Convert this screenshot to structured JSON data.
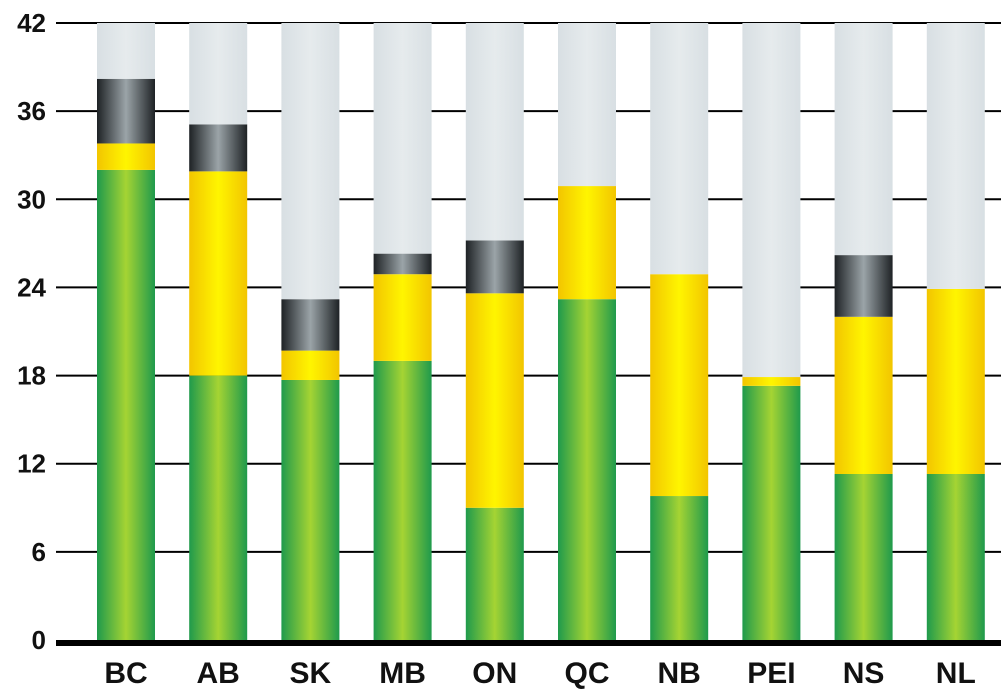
{
  "chart_data": {
    "type": "bar",
    "stacked": true,
    "categories": [
      "BC",
      "AB",
      "SK",
      "MB",
      "ON",
      "QC",
      "NB",
      "PEI",
      "NS",
      "NL"
    ],
    "series": [
      {
        "color": "#2ea84a",
        "values": [
          32,
          18,
          17.7,
          19,
          9,
          23.2,
          9.8,
          17.3,
          11.3,
          11.3
        ]
      },
      {
        "color": "#f7e600",
        "values": [
          1.8,
          13.9,
          2,
          5.9,
          14.6,
          7.7,
          15.1,
          0.6,
          10.7,
          12.6
        ]
      },
      {
        "color": "#555c60",
        "values": [
          4.4,
          3.2,
          3.5,
          1.4,
          3.6,
          0,
          0,
          0,
          4.2,
          0
        ]
      },
      {
        "color": "#dde3e6",
        "values": [
          3.8,
          6.9,
          18.8,
          15.7,
          14.8,
          11.1,
          17.1,
          24.1,
          15.8,
          18.1
        ]
      }
    ],
    "yticks": [
      0,
      6,
      12,
      18,
      24,
      30,
      36,
      42
    ],
    "ylim": [
      0,
      42
    ],
    "grid": true,
    "legend": "none"
  }
}
